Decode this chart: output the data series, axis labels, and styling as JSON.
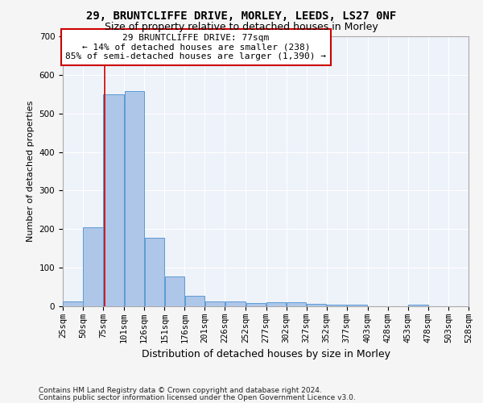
{
  "title": "29, BRUNTCLIFFE DRIVE, MORLEY, LEEDS, LS27 0NF",
  "subtitle": "Size of property relative to detached houses in Morley",
  "xlabel": "Distribution of detached houses by size in Morley",
  "ylabel": "Number of detached properties",
  "footer_line1": "Contains HM Land Registry data © Crown copyright and database right 2024.",
  "footer_line2": "Contains public sector information licensed under the Open Government Licence v3.0.",
  "bar_edges": [
    25,
    50,
    75,
    101,
    126,
    151,
    176,
    201,
    226,
    252,
    277,
    302,
    327,
    352,
    377,
    403,
    428,
    453,
    478,
    503,
    528
  ],
  "bar_heights": [
    13,
    204,
    550,
    557,
    178,
    77,
    28,
    12,
    12,
    9,
    10,
    10,
    7,
    5,
    5,
    1,
    0,
    5,
    1,
    0
  ],
  "bar_color": "#aec6e8",
  "bar_edge_color": "#5b9bd5",
  "property_size": 77,
  "vline_color": "#cc0000",
  "annotation_line1": "29 BRUNTCLIFFE DRIVE: 77sqm",
  "annotation_line2": "← 14% of detached houses are smaller (238)",
  "annotation_line3": "85% of semi-detached houses are larger (1,390) →",
  "annotation_box_color": "#cc0000",
  "ylim": [
    0,
    700
  ],
  "yticks": [
    0,
    100,
    200,
    300,
    400,
    500,
    600,
    700
  ],
  "background_color": "#eef2f9",
  "grid_color": "#ffffff",
  "title_fontsize": 10,
  "subtitle_fontsize": 9,
  "axis_label_fontsize": 8,
  "tick_fontsize": 7.5,
  "annotation_fontsize": 8,
  "footer_fontsize": 6.5
}
